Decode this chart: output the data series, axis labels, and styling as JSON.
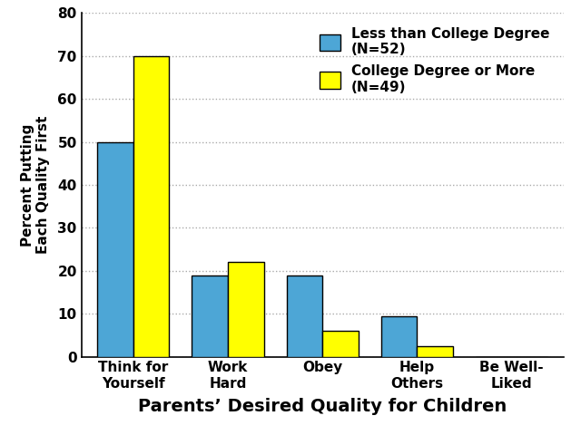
{
  "categories": [
    "Think for\nYourself",
    "Work\nHard",
    "Obey",
    "Help\nOthers",
    "Be Well-\nLiked"
  ],
  "series1_label": "Less than College Degree\n(N=52)",
  "series2_label": "College Degree or More\n(N=49)",
  "series1_values": [
    50,
    19,
    19,
    9.5,
    0
  ],
  "series2_values": [
    70,
    22,
    6,
    2.5,
    0
  ],
  "series1_color": "#4DA6D6",
  "series2_color": "#FFFF00",
  "bar_edge_color": "#000000",
  "xlabel": "Parents’ Desired Quality for Children",
  "ylabel": "Percent Putting\nEach Quality First",
  "ylim": [
    0,
    80
  ],
  "yticks": [
    0,
    10,
    20,
    30,
    40,
    50,
    60,
    70,
    80
  ],
  "background_color": "#FFFFFF",
  "grid_color": "#AAAAAA",
  "bar_width": 0.38,
  "xlabel_fontsize": 14,
  "ylabel_fontsize": 11,
  "tick_fontsize": 11,
  "legend_fontsize": 11
}
